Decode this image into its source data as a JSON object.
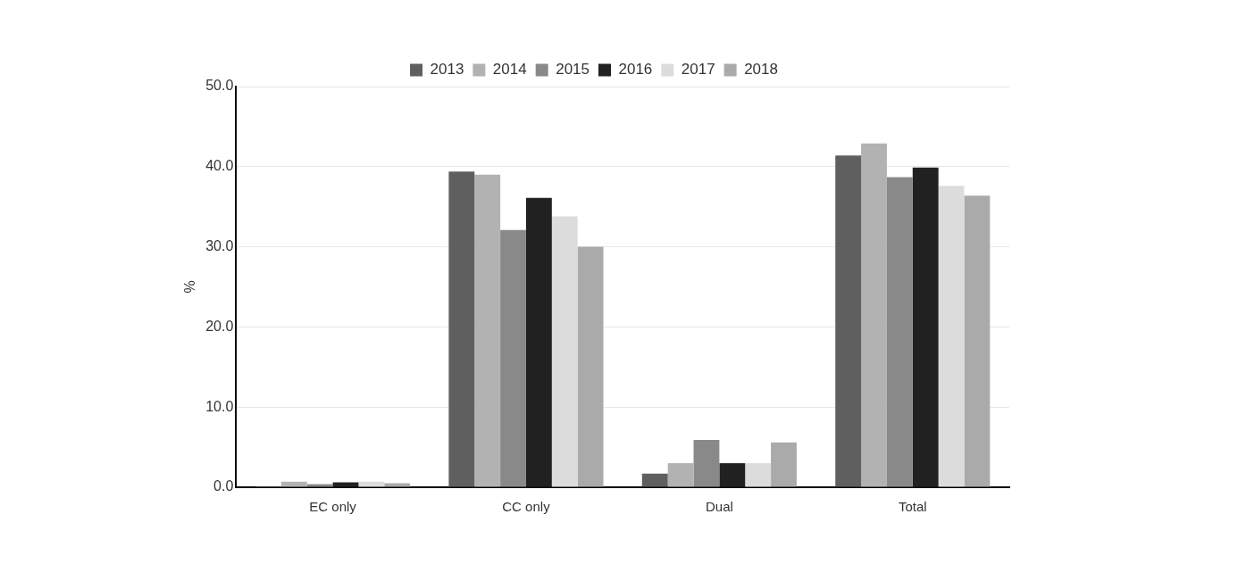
{
  "chart_data": {
    "type": "bar",
    "ylabel": "%",
    "categories": [
      "EC only",
      "CC only",
      "Dual",
      "Total"
    ],
    "series": [
      {
        "name": "2013",
        "color": "#5f5f5f",
        "values": [
          0.1,
          39.4,
          1.7,
          41.4
        ]
      },
      {
        "name": "2014",
        "color": "#b2b2b2",
        "values": [
          0.7,
          39.0,
          3.0,
          42.9
        ]
      },
      {
        "name": "2015",
        "color": "#898989",
        "values": [
          0.4,
          32.1,
          5.9,
          38.7
        ]
      },
      {
        "name": "2016",
        "color": "#212121",
        "values": [
          0.6,
          36.1,
          3.0,
          39.9
        ]
      },
      {
        "name": "2017",
        "color": "#dcdcdc",
        "values": [
          0.7,
          33.8,
          3.0,
          37.6
        ]
      },
      {
        "name": "2018",
        "color": "#aaaaaa",
        "values": [
          0.5,
          30.0,
          5.6,
          36.4
        ]
      }
    ],
    "ylim": [
      0,
      50
    ],
    "yticks": [
      {
        "value": 0,
        "label": "0.0"
      },
      {
        "value": 10,
        "label": "10.0"
      },
      {
        "value": 20,
        "label": "20.0"
      },
      {
        "value": 30,
        "label": "30.0"
      },
      {
        "value": 40,
        "label": "40.0"
      },
      {
        "value": 50,
        "label": "50.0"
      }
    ],
    "grid": "y",
    "legend": "top"
  }
}
